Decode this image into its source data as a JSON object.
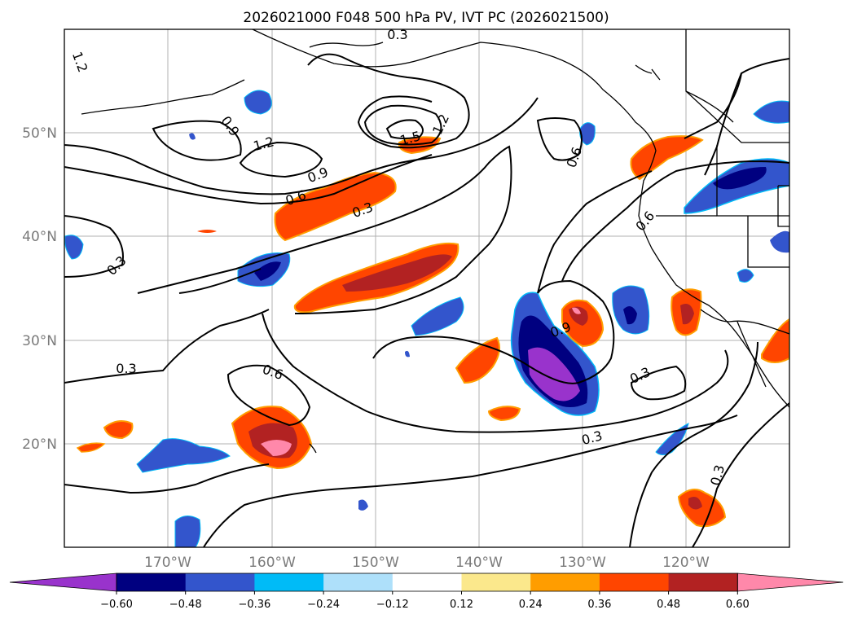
{
  "title": "2026021000 F048 500 hPa PV, IVT PC (2026021500)",
  "lat_labels": [
    "50°N",
    "40°N",
    "30°N",
    "20°N"
  ],
  "lon_labels": [
    "170°W",
    "160°W",
    "150°W",
    "140°W",
    "130°W",
    "120°W"
  ],
  "contour_labels": [
    "0.3",
    "1.2",
    "0.9",
    "1.2",
    "1.5",
    "1.2",
    "0.9",
    "0.6",
    "0.3",
    "0.6",
    "0.6",
    "0.3",
    "0.9",
    "0.3",
    "0.6",
    "0.3",
    "0.3",
    "0.3"
  ],
  "colorbar": {
    "ticks": [
      "−0.60",
      "−0.48",
      "−0.36",
      "−0.24",
      "−0.12",
      "0.12",
      "0.24",
      "0.36",
      "0.48",
      "0.60"
    ],
    "colors": [
      "#9933cc",
      "#000080",
      "#3355cc",
      "#00bbf7",
      "#aee0fa",
      "#ffffff",
      "#fbe88c",
      "#ff9d00",
      "#ff4500",
      "#b22222",
      "#ff88aa"
    ]
  }
}
